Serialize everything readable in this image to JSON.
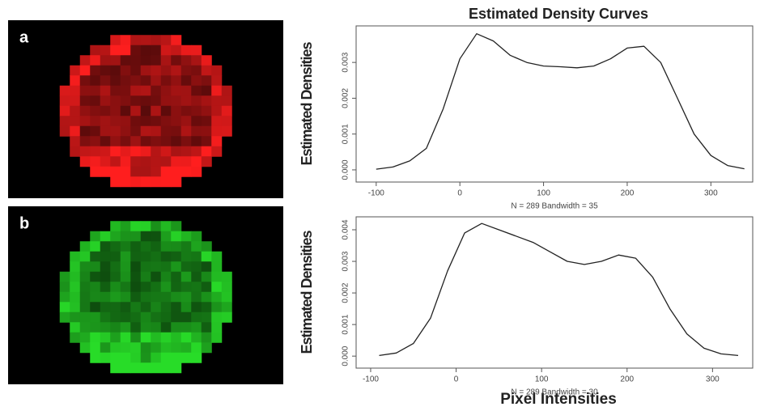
{
  "title": "Estimated Density Curves",
  "x_label": "Pixel Intensities",
  "chart_data": [
    {
      "type": "line",
      "panel_label": "a",
      "y_label": "Estimated Densities",
      "x_note": "N = 289   Bandwidth = 35",
      "color": "#222222",
      "x": [
        -100,
        -80,
        -60,
        -40,
        -20,
        0,
        20,
        40,
        60,
        80,
        100,
        120,
        140,
        160,
        180,
        200,
        220,
        240,
        260,
        280,
        300,
        320,
        340
      ],
      "values": [
        2e-05,
        8e-05,
        0.00025,
        0.0006,
        0.0017,
        0.0031,
        0.0038,
        0.0036,
        0.0032,
        0.003,
        0.0029,
        0.00288,
        0.00285,
        0.0029,
        0.0031,
        0.0034,
        0.00345,
        0.003,
        0.002,
        0.001,
        0.0004,
        0.00012,
        3e-05
      ],
      "xlim": [
        -124,
        350
      ],
      "ylim": [
        -0.00034,
        0.00402
      ],
      "xticks": [
        -100,
        0,
        100,
        200,
        300
      ],
      "yticks": [
        {
          "value": 0,
          "label": "0.000"
        },
        {
          "value": 0.001,
          "label": "0.001"
        },
        {
          "value": 0.002,
          "label": "0.002"
        },
        {
          "value": 0.003,
          "label": "0.003"
        }
      ]
    },
    {
      "type": "line",
      "panel_label": "b",
      "y_label": "Estimated Densities",
      "x_note": "N = 289   Bandwidth = 30",
      "color": "#222222",
      "x": [
        -90,
        -70,
        -50,
        -30,
        -10,
        10,
        30,
        50,
        70,
        90,
        110,
        130,
        150,
        170,
        190,
        210,
        230,
        250,
        270,
        290,
        310,
        330
      ],
      "values": [
        2e-05,
        0.0001,
        0.0004,
        0.0012,
        0.0027,
        0.0039,
        0.0042,
        0.004,
        0.0038,
        0.0036,
        0.0033,
        0.003,
        0.0029,
        0.003,
        0.0032,
        0.0031,
        0.0025,
        0.0015,
        0.0007,
        0.00025,
        7e-05,
        2e-05
      ],
      "xlim": [
        -117,
        347
      ],
      "ylim": [
        -0.00038,
        0.00441
      ],
      "xticks": [
        -100,
        0,
        100,
        200,
        300
      ],
      "yticks": [
        {
          "value": 0,
          "label": "0.000"
        },
        {
          "value": 0.001,
          "label": "0.001"
        },
        {
          "value": 0.002,
          "label": "0.002"
        },
        {
          "value": 0.003,
          "label": "0.003"
        },
        {
          "value": 0.004,
          "label": "0.004"
        }
      ]
    }
  ]
}
